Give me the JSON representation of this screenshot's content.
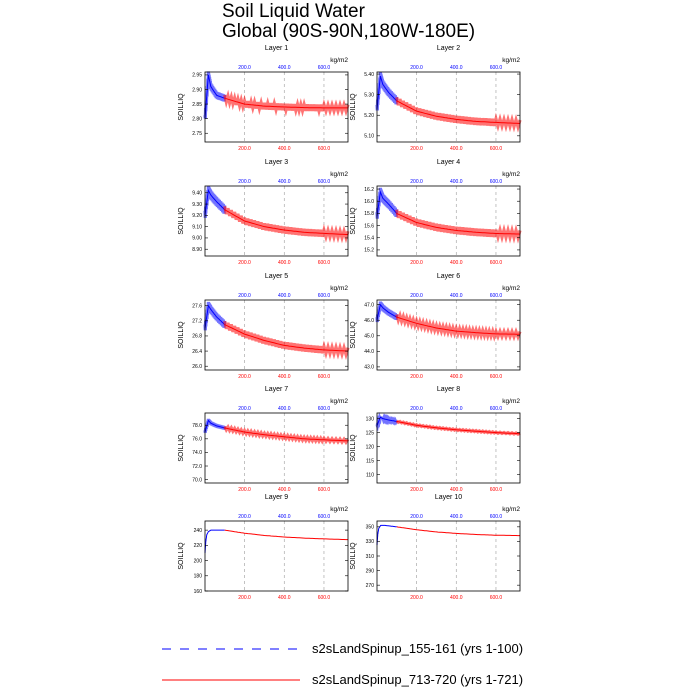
{
  "page": {
    "title": "Soil Liquid Water",
    "subtitle": "Global (90S-90N,180W-180E)"
  },
  "legend": {
    "items": [
      {
        "label": "s2sLandSpinup_155-161 (yrs 1-100)",
        "color": "#0000ff",
        "style": "dashed"
      },
      {
        "label": "s2sLandSpinup_713-720 (yrs 1-721)",
        "color": "#ff0000",
        "style": "solid"
      }
    ]
  },
  "chart_data": [
    {
      "type": "line",
      "title": "Layer 1",
      "ylabel": "SOILLIQ",
      "units": "kg/m2",
      "ylim": [
        2.72,
        2.96
      ],
      "yticks": [
        "2.75",
        "2.80",
        "2.85",
        "2.90",
        "2.95"
      ],
      "xlim": [
        1,
        721
      ],
      "bottom_xticks": [
        "200.0",
        "400.0",
        "600.0"
      ],
      "top_xticks": [
        "200.0",
        "400.0",
        "600.0"
      ],
      "series": [
        {
          "name": "s2sLandSpinup_155-161 (yrs 1-100)",
          "color": "#0000ff",
          "x": [
            1,
            18,
            30,
            60,
            100
          ],
          "y": [
            2.8,
            2.95,
            2.91,
            2.88,
            2.87
          ],
          "band": 0.012
        },
        {
          "name": "s2sLandSpinup_713-720 (yrs 1-721)",
          "color": "#ff0000",
          "x": [
            100,
            200,
            300,
            400,
            500,
            600,
            721
          ],
          "y": [
            2.87,
            2.85,
            2.843,
            2.84,
            2.838,
            2.837,
            2.837
          ],
          "band": 0.011
        }
      ]
    },
    {
      "type": "line",
      "title": "Layer 2",
      "ylabel": "SOILLIQ",
      "units": "kg/m2",
      "ylim": [
        5.07,
        5.41
      ],
      "yticks": [
        "5.10",
        "5.20",
        "5.30",
        "5.40"
      ],
      "xlim": [
        1,
        721
      ],
      "bottom_xticks": [
        "200.0",
        "400.0",
        "600.0"
      ],
      "top_xticks": [
        "200.0",
        "400.0",
        "600.0"
      ],
      "series": [
        {
          "name": "s2sLandSpinup_155-161 (yrs 1-100)",
          "color": "#0000ff",
          "x": [
            1,
            18,
            30,
            60,
            100
          ],
          "y": [
            5.23,
            5.39,
            5.35,
            5.31,
            5.27
          ],
          "band": 0.02
        },
        {
          "name": "s2sLandSpinup_713-720 (yrs 1-721)",
          "color": "#ff0000",
          "x": [
            100,
            200,
            300,
            400,
            500,
            600,
            721
          ],
          "y": [
            5.27,
            5.22,
            5.195,
            5.18,
            5.17,
            5.165,
            5.16
          ],
          "band": 0.017
        }
      ]
    },
    {
      "type": "line",
      "title": "Layer 3",
      "ylabel": "SOILLIQ",
      "units": "kg/m2",
      "ylim": [
        8.84,
        9.46
      ],
      "yticks": [
        "8.90",
        "9.00",
        "9.10",
        "9.20",
        "9.30",
        "9.40"
      ],
      "xlim": [
        1,
        721
      ],
      "bottom_xticks": [
        "200.0",
        "400.0",
        "600.0"
      ],
      "top_xticks": [
        "200.0",
        "400.0",
        "600.0"
      ],
      "series": [
        {
          "name": "s2sLandSpinup_155-161 (yrs 1-100)",
          "color": "#0000ff",
          "x": [
            1,
            18,
            30,
            60,
            100
          ],
          "y": [
            9.2,
            9.42,
            9.38,
            9.32,
            9.25
          ],
          "band": 0.04
        },
        {
          "name": "s2sLandSpinup_713-720 (yrs 1-721)",
          "color": "#ff0000",
          "x": [
            100,
            200,
            300,
            400,
            500,
            600,
            721
          ],
          "y": [
            9.25,
            9.15,
            9.1,
            9.07,
            9.05,
            9.04,
            9.03
          ],
          "band": 0.03
        }
      ]
    },
    {
      "type": "line",
      "title": "Layer 4",
      "ylabel": "SOILLIQ",
      "units": "kg/m2",
      "ylim": [
        15.1,
        16.25
      ],
      "yticks": [
        "15.2",
        "15.4",
        "15.6",
        "15.8",
        "16.0",
        "16.2"
      ],
      "xlim": [
        1,
        721
      ],
      "bottom_xticks": [
        "200.0",
        "400.0",
        "600.0"
      ],
      "top_xticks": [
        "200.0",
        "400.0",
        "600.0"
      ],
      "series": [
        {
          "name": "s2sLandSpinup_155-161 (yrs 1-100)",
          "color": "#0000ff",
          "x": [
            1,
            18,
            30,
            60,
            100
          ],
          "y": [
            15.75,
            16.15,
            16.05,
            15.95,
            15.8
          ],
          "band": 0.07
        },
        {
          "name": "s2sLandSpinup_713-720 (yrs 1-721)",
          "color": "#ff0000",
          "x": [
            100,
            200,
            300,
            400,
            500,
            600,
            721
          ],
          "y": [
            15.8,
            15.65,
            15.57,
            15.52,
            15.49,
            15.47,
            15.46
          ],
          "band": 0.06
        }
      ]
    },
    {
      "type": "line",
      "title": "Layer 5",
      "ylabel": "SOILLIQ",
      "units": "kg/m2",
      "ylim": [
        25.9,
        27.75
      ],
      "yticks": [
        "26.0",
        "26.4",
        "26.8",
        "27.2",
        "27.6"
      ],
      "xlim": [
        1,
        721
      ],
      "bottom_xticks": [
        "200.0",
        "400.0",
        "600.0"
      ],
      "top_xticks": [
        "200.0",
        "400.0",
        "600.0"
      ],
      "series": [
        {
          "name": "s2sLandSpinup_155-161 (yrs 1-100)",
          "color": "#0000ff",
          "x": [
            1,
            18,
            30,
            60,
            100
          ],
          "y": [
            27.0,
            27.6,
            27.5,
            27.3,
            27.1
          ],
          "band": 0.1
        },
        {
          "name": "s2sLandSpinup_713-720 (yrs 1-721)",
          "color": "#ff0000",
          "x": [
            100,
            200,
            300,
            400,
            500,
            600,
            721
          ],
          "y": [
            27.1,
            26.85,
            26.68,
            26.55,
            26.48,
            26.43,
            26.4
          ],
          "band": 0.09
        }
      ]
    },
    {
      "type": "line",
      "title": "Layer 6",
      "ylabel": "SOILLIQ",
      "units": "kg/m2",
      "ylim": [
        42.8,
        47.3
      ],
      "yticks": [
        "43.0",
        "44.0",
        "45.0",
        "46.0",
        "47.0"
      ],
      "xlim": [
        1,
        721
      ],
      "bottom_xticks": [
        "200.0",
        "400.0",
        "600.0"
      ],
      "top_xticks": [
        "200.0",
        "400.0",
        "600.0"
      ],
      "series": [
        {
          "name": "s2sLandSpinup_155-161 (yrs 1-100)",
          "color": "#0000ff",
          "x": [
            1,
            18,
            30,
            60,
            100
          ],
          "y": [
            46.0,
            47.0,
            46.8,
            46.5,
            46.2
          ],
          "band": 0.2
        },
        {
          "name": "s2sLandSpinup_713-720 (yrs 1-721)",
          "color": "#ff0000",
          "x": [
            100,
            200,
            300,
            400,
            500,
            600,
            721
          ],
          "y": [
            46.2,
            45.8,
            45.5,
            45.3,
            45.2,
            45.12,
            45.1
          ],
          "band": 0.17
        }
      ]
    },
    {
      "type": "line",
      "title": "Layer 7",
      "ylabel": "SOILLIQ",
      "units": "kg/m2",
      "ylim": [
        69.5,
        79.8
      ],
      "yticks": [
        "70.0",
        "72.0",
        "74.0",
        "76.0",
        "78.0"
      ],
      "xlim": [
        1,
        721
      ],
      "bottom_xticks": [
        "200.0",
        "400.0",
        "600.0"
      ],
      "top_xticks": [
        "200.0",
        "400.0",
        "600.0"
      ],
      "series": [
        {
          "name": "s2sLandSpinup_155-161 (yrs 1-100)",
          "color": "#0000ff",
          "x": [
            1,
            18,
            30,
            60,
            100
          ],
          "y": [
            77.0,
            78.7,
            78.3,
            77.9,
            77.6
          ],
          "band": 0.25
        },
        {
          "name": "s2sLandSpinup_713-720 (yrs 1-721)",
          "color": "#ff0000",
          "x": [
            100,
            200,
            300,
            400,
            500,
            600,
            721
          ],
          "y": [
            77.6,
            77.0,
            76.6,
            76.3,
            76.0,
            75.85,
            75.7
          ],
          "band": 0.22
        }
      ]
    },
    {
      "type": "line",
      "title": "Layer 8",
      "ylabel": "SOILLIQ",
      "units": "kg/m2",
      "ylim": [
        107,
        132
      ],
      "yticks": [
        "110",
        "115",
        "120",
        "125",
        "130"
      ],
      "xlim": [
        1,
        721
      ],
      "bottom_xticks": [
        "200.0",
        "400.0",
        "600.0"
      ],
      "top_xticks": [
        "200.0",
        "400.0",
        "600.0"
      ],
      "series": [
        {
          "name": "s2sLandSpinup_155-161 (yrs 1-100)",
          "color": "#0000ff",
          "x": [
            1,
            18,
            30,
            60,
            100
          ],
          "y": [
            127.5,
            130.5,
            130.0,
            129.5,
            129.0
          ],
          "band": 0.25
        },
        {
          "name": "s2sLandSpinup_713-720 (yrs 1-721)",
          "color": "#ff0000",
          "x": [
            100,
            200,
            300,
            400,
            500,
            600,
            721
          ],
          "y": [
            129.0,
            127.6,
            126.7,
            126.0,
            125.5,
            125.0,
            124.6
          ],
          "band": 0.2
        }
      ]
    },
    {
      "type": "line",
      "title": "Layer 9",
      "ylabel": "SOILLIQ",
      "units": "kg/m2",
      "ylim": [
        160,
        252
      ],
      "yticks": [
        "160",
        "180",
        "200",
        "220",
        "240"
      ],
      "xlim": [
        1,
        721
      ],
      "bottom_xticks": [
        "200.0",
        "400.0",
        "600.0"
      ],
      "top_xticks": [
        "200.0",
        "400.0",
        "600.0"
      ],
      "series": [
        {
          "name": "s2sLandSpinup_155-161 (yrs 1-100)",
          "color": "#0000ff",
          "x": [
            1,
            5,
            10,
            18,
            30,
            60,
            100
          ],
          "y": [
            210,
            225,
            234,
            238,
            240,
            240,
            240
          ],
          "band": 0
        },
        {
          "name": "s2sLandSpinup_713-720 (yrs 1-721)",
          "color": "#ff0000",
          "x": [
            100,
            200,
            300,
            400,
            500,
            600,
            721
          ],
          "y": [
            240,
            236,
            233,
            231,
            229.5,
            228.5,
            227.5
          ],
          "band": 0
        }
      ]
    },
    {
      "type": "line",
      "title": "Layer 10",
      "ylabel": "SOILLIQ",
      "units": "kg/m2",
      "ylim": [
        262,
        358
      ],
      "yticks": [
        "270",
        "290",
        "310",
        "330",
        "350"
      ],
      "xlim": [
        1,
        721
      ],
      "bottom_xticks": [
        "200.0",
        "400.0",
        "600.0"
      ],
      "top_xticks": [
        "200.0",
        "400.0",
        "600.0"
      ],
      "series": [
        {
          "name": "s2sLandSpinup_155-161 (yrs 1-100)",
          "color": "#0000ff",
          "x": [
            1,
            5,
            10,
            20,
            40,
            70,
            100
          ],
          "y": [
            325,
            340,
            348,
            352,
            352,
            351,
            350
          ],
          "band": 0
        },
        {
          "name": "s2sLandSpinup_713-720 (yrs 1-721)",
          "color": "#ff0000",
          "x": [
            100,
            200,
            300,
            400,
            500,
            600,
            721
          ],
          "y": [
            350,
            346,
            343,
            341,
            339.5,
            338.5,
            338
          ],
          "band": 0
        }
      ]
    }
  ]
}
